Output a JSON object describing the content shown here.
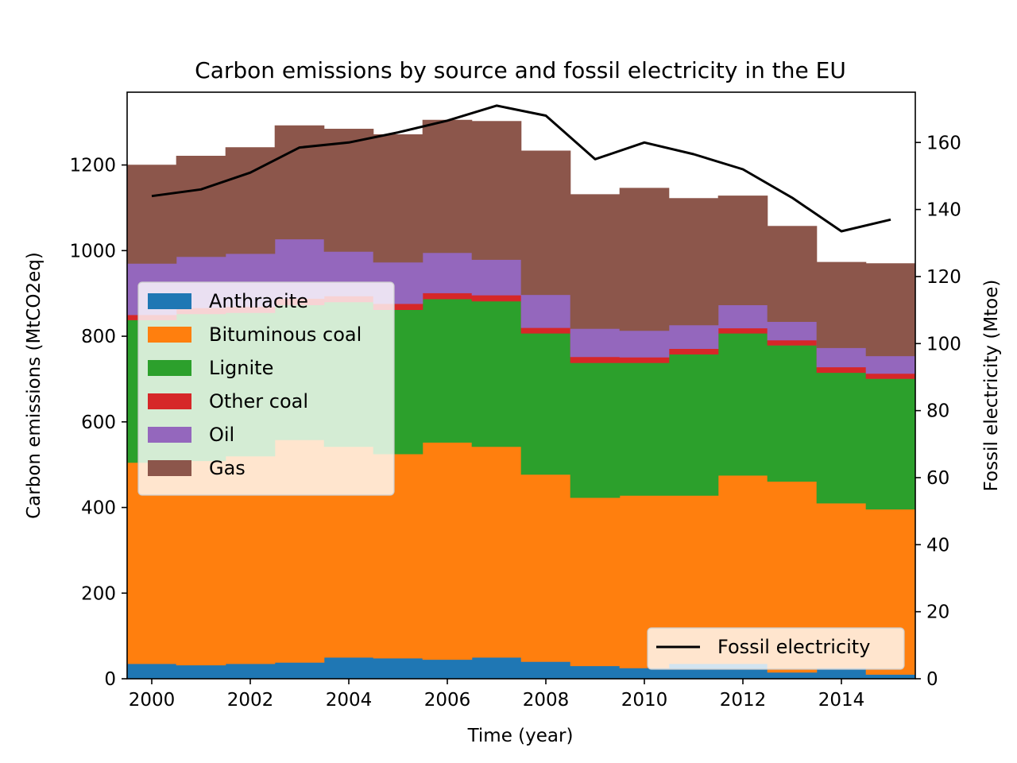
{
  "chart_data": {
    "type": "area",
    "title": "Carbon emissions by source and fossil electricity in the EU",
    "xlabel": "Time (year)",
    "ylabel": "Carbon emissions (MtCO2eq)",
    "y2label": "Fossil electricity (Mtoe)",
    "xlim": [
      1999.5,
      2015.5
    ],
    "ylim": [
      0,
      1370
    ],
    "y2lim": [
      0,
      175
    ],
    "x_ticks": [
      "2000",
      "2002",
      "2004",
      "2006",
      "2008",
      "2010",
      "2012",
      "2014"
    ],
    "y_ticks": [
      "0",
      "200",
      "400",
      "600",
      "800",
      "1000",
      "1200"
    ],
    "y2_ticks": [
      "0",
      "20",
      "40",
      "60",
      "80",
      "100",
      "120",
      "140",
      "160"
    ],
    "x": [
      2000,
      2001,
      2002,
      2003,
      2004,
      2005,
      2006,
      2007,
      2008,
      2009,
      2010,
      2011,
      2012,
      2013,
      2014,
      2015
    ],
    "stack_series": [
      {
        "name": "Anthracite",
        "color": "#1f77b4",
        "values": [
          35,
          32,
          35,
          38,
          50,
          48,
          45,
          50,
          40,
          30,
          25,
          35,
          35,
          15,
          25,
          10
        ]
      },
      {
        "name": "Bituminous coal",
        "color": "#ff7f0e",
        "values": [
          470,
          477,
          485,
          520,
          492,
          477,
          507,
          492,
          437,
          393,
          403,
          393,
          440,
          446,
          385,
          386
        ]
      },
      {
        "name": "Lignite",
        "color": "#2ca02c",
        "values": [
          333,
          343,
          335,
          315,
          338,
          337,
          335,
          340,
          330,
          315,
          310,
          330,
          332,
          318,
          305,
          305
        ]
      },
      {
        "name": "Other coal",
        "color": "#d62728",
        "values": [
          12,
          14,
          14,
          15,
          14,
          14,
          14,
          14,
          13,
          14,
          13,
          13,
          12,
          12,
          13,
          12
        ]
      },
      {
        "name": "Oil",
        "color": "#9467bd",
        "values": [
          120,
          120,
          124,
          139,
          104,
          97,
          94,
          83,
          77,
          66,
          62,
          55,
          54,
          43,
          45,
          41
        ]
      },
      {
        "name": "Gas",
        "color": "#8c564b",
        "values": [
          230,
          235,
          248,
          265,
          286,
          298,
          310,
          323,
          336,
          313,
          333,
          296,
          255,
          223,
          200,
          216
        ]
      }
    ],
    "line_series": {
      "name": "Fossil electricity",
      "color": "#000000",
      "values": [
        144,
        146,
        151,
        158.5,
        160,
        163,
        166.5,
        171,
        168,
        155,
        160,
        156.5,
        152,
        143.5,
        133.5,
        137
      ]
    },
    "legend_placement": "center-left",
    "line_legend_placement": "lower-right",
    "grid": false
  }
}
